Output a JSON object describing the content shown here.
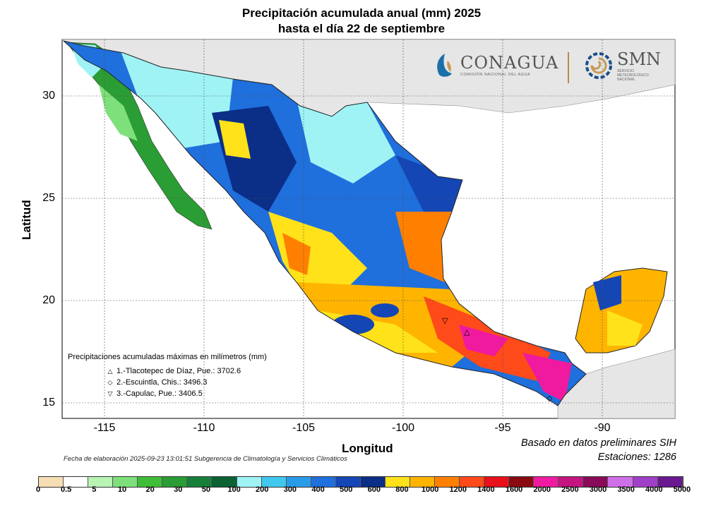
{
  "title_line1": "Precipitación acumulada anual (mm) 2025",
  "title_line2": "hasta el día 22 de septiembre",
  "xlabel": "Longitud",
  "ylabel": "Latitud",
  "x_ticks": [
    "-115",
    "-110",
    "-105",
    "-100",
    "-95",
    "-90"
  ],
  "y_ticks": [
    "30",
    "25",
    "20",
    "15"
  ],
  "logos": {
    "conagua_name": "CONAGUA",
    "conagua_sub": "COMISIÓN NACIONAL DEL AGUA",
    "smn_name": "SMN",
    "smn_sub1": "SERVICIO",
    "smn_sub2": "METEOROLÓGICO",
    "smn_sub3": "NACIONAL"
  },
  "maxima": {
    "header": "Precipitaciones acumuladas máximas en milímetros (mm)",
    "items": [
      {
        "marker": "△",
        "text": "1.-Tlacotepec de Díaz, Pue.: 3702.6"
      },
      {
        "marker": "◇",
        "text": "2.-Escuintla, Chis.: 3496.3"
      },
      {
        "marker": "▽",
        "text": "3.-Capulac, Pue.: 3406.5"
      }
    ]
  },
  "credit": "Fecha de elaboración 2025-09-23 13:01:51 Subgerencia de Climatología y Servicios Climáticos",
  "note_line1": "Basado en datos preliminares SIH",
  "note_line2": "Estaciones:  1286",
  "colorbar": {
    "labels": [
      "0",
      "0.5",
      "5",
      "10",
      "20",
      "30",
      "50",
      "100",
      "200",
      "300",
      "400",
      "500",
      "600",
      "800",
      "1000",
      "1200",
      "1400",
      "1600",
      "2000",
      "2500",
      "3000",
      "3500",
      "4000",
      "5000"
    ],
    "colors": [
      "#f5deb3",
      "#ffffff",
      "#b9f4b5",
      "#7ee07a",
      "#3fbd38",
      "#2a9d34",
      "#16803a",
      "#0a6132",
      "#9ff3f5",
      "#40c8ee",
      "#2a9be8",
      "#1f6fdc",
      "#1446b5",
      "#0b2e86",
      "#ffe21a",
      "#ffb400",
      "#ff8000",
      "#ff4a1a",
      "#e8101a",
      "#8a0a12",
      "#f01aa0",
      "#c41480",
      "#8a0a5a",
      "#d070e8",
      "#a040c8",
      "#6a1890"
    ]
  }
}
